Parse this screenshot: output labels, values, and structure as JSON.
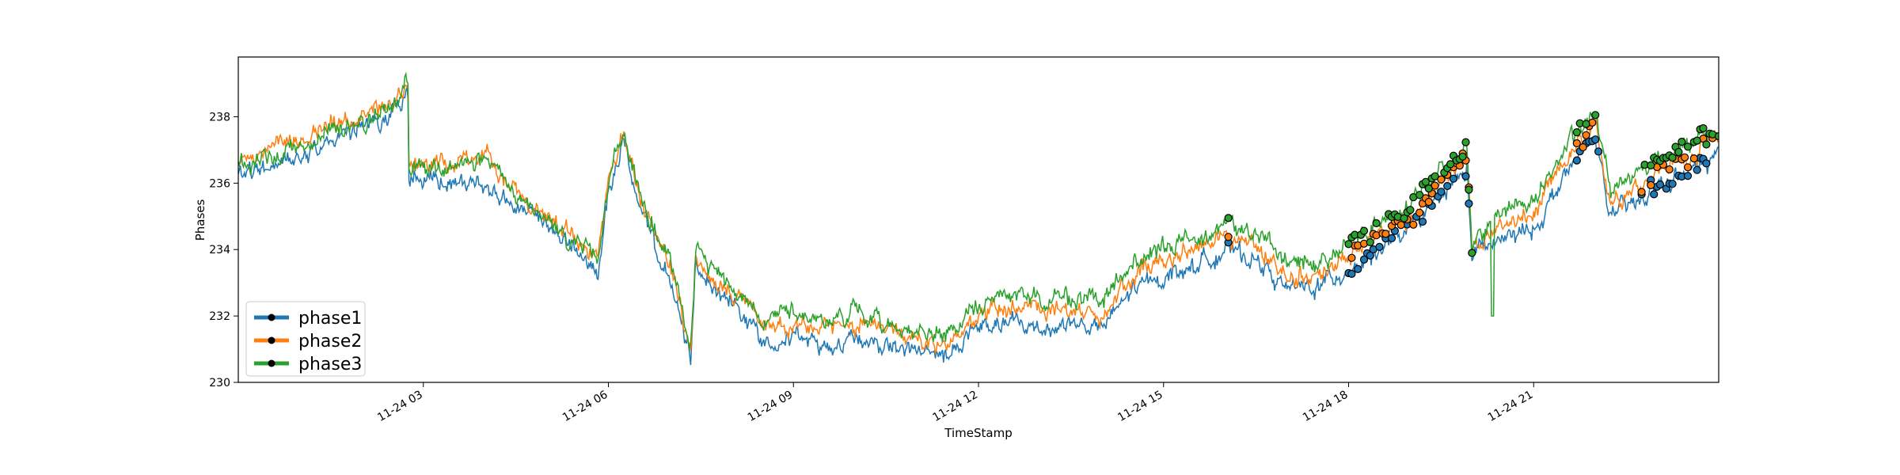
{
  "chart_data": {
    "type": "line",
    "xlabel": "TimeStamp",
    "ylabel": "Phases",
    "x_start": "11-24 00:00",
    "x_end": "11-24 24:00",
    "ylim": [
      230,
      239.8
    ],
    "yticks": [
      230,
      232,
      234,
      236,
      238
    ],
    "ytick_labels": [
      "230",
      "232",
      "234",
      "236",
      "238"
    ],
    "xticks": [
      "11-24 03",
      "11-24 06",
      "11-24 09",
      "11-24 12",
      "11-24 15",
      "11-24 18",
      "11-24 21"
    ],
    "legend_position": "lower-left",
    "grid": false,
    "markers_note": "circle markers (black edge) on anomalous points",
    "series": [
      {
        "name": "phase1",
        "color": "#1f77b4",
        "values": [
          [
            "00:00",
            236.2
          ],
          [
            "00:30",
            236.5
          ],
          [
            "01:00",
            236.9
          ],
          [
            "01:30",
            237.3
          ],
          [
            "02:00",
            237.6
          ],
          [
            "02:30",
            238.2
          ],
          [
            "02:45",
            238.6
          ],
          [
            "02:46",
            236.1
          ],
          [
            "03:30",
            236.0
          ],
          [
            "04:00",
            235.9
          ],
          [
            "04:30",
            235.3
          ],
          [
            "05:00",
            234.6
          ],
          [
            "05:30",
            234.0
          ],
          [
            "05:50",
            233.2
          ],
          [
            "06:00",
            235.8
          ],
          [
            "06:15",
            237.3
          ],
          [
            "06:30",
            235.2
          ],
          [
            "07:00",
            233.0
          ],
          [
            "07:20",
            230.7
          ],
          [
            "07:25",
            233.5
          ],
          [
            "08:00",
            232.4
          ],
          [
            "08:30",
            231.3
          ],
          [
            "09:00",
            231.4
          ],
          [
            "09:30",
            231.0
          ],
          [
            "10:00",
            231.4
          ],
          [
            "10:30",
            231.1
          ],
          [
            "11:00",
            230.9
          ],
          [
            "11:30",
            230.8
          ],
          [
            "12:00",
            231.6
          ],
          [
            "12:30",
            231.8
          ],
          [
            "13:00",
            231.6
          ],
          [
            "13:30",
            231.8
          ],
          [
            "14:00",
            231.6
          ],
          [
            "14:30",
            232.8
          ],
          [
            "15:00",
            233.2
          ],
          [
            "15:30",
            233.5
          ],
          [
            "16:00",
            234.0
          ],
          [
            "16:30",
            233.7
          ],
          [
            "17:00",
            232.8
          ],
          [
            "17:30",
            232.9
          ],
          [
            "18:00",
            233.4
          ],
          [
            "18:30",
            234.0
          ],
          [
            "19:00",
            234.6
          ],
          [
            "19:30",
            235.6
          ],
          [
            "19:55",
            236.4
          ],
          [
            "20:00",
            233.9
          ],
          [
            "20:30",
            234.3
          ],
          [
            "21:00",
            234.6
          ],
          [
            "21:30",
            236.2
          ],
          [
            "22:00",
            237.4
          ],
          [
            "22:15",
            235.0
          ],
          [
            "22:45",
            235.5
          ],
          [
            "23:00",
            235.9
          ],
          [
            "23:30",
            236.3
          ],
          [
            "24:00",
            236.9
          ]
        ]
      },
      {
        "name": "phase2",
        "color": "#ff7f0e",
        "values": [
          [
            "00:00",
            236.7
          ],
          [
            "00:30",
            236.9
          ],
          [
            "01:00",
            237.4
          ],
          [
            "01:30",
            237.8
          ],
          [
            "02:00",
            237.9
          ],
          [
            "02:30",
            238.4
          ],
          [
            "02:45",
            239.0
          ],
          [
            "02:46",
            236.5
          ],
          [
            "03:30",
            236.6
          ],
          [
            "04:00",
            236.9
          ],
          [
            "04:30",
            235.8
          ],
          [
            "05:00",
            235.0
          ],
          [
            "05:30",
            234.4
          ],
          [
            "05:50",
            233.8
          ],
          [
            "06:00",
            236.0
          ],
          [
            "06:15",
            237.5
          ],
          [
            "06:30",
            235.5
          ],
          [
            "07:00",
            233.5
          ],
          [
            "07:20",
            231.0
          ],
          [
            "07:25",
            233.7
          ],
          [
            "08:00",
            232.8
          ],
          [
            "08:30",
            231.7
          ],
          [
            "09:00",
            231.8
          ],
          [
            "09:30",
            231.5
          ],
          [
            "10:00",
            231.8
          ],
          [
            "10:30",
            231.5
          ],
          [
            "11:00",
            231.3
          ],
          [
            "11:30",
            231.2
          ],
          [
            "12:00",
            232.0
          ],
          [
            "12:30",
            232.3
          ],
          [
            "13:00",
            232.1
          ],
          [
            "13:30",
            232.3
          ],
          [
            "14:00",
            232.0
          ],
          [
            "14:30",
            233.2
          ],
          [
            "15:00",
            233.6
          ],
          [
            "15:30",
            234.0
          ],
          [
            "16:00",
            234.4
          ],
          [
            "16:30",
            234.1
          ],
          [
            "17:00",
            233.1
          ],
          [
            "17:30",
            233.2
          ],
          [
            "18:00",
            233.8
          ],
          [
            "18:30",
            234.5
          ],
          [
            "19:00",
            235.0
          ],
          [
            "19:30",
            236.0
          ],
          [
            "19:55",
            236.8
          ],
          [
            "20:00",
            234.0
          ],
          [
            "20:30",
            234.7
          ],
          [
            "21:00",
            235.0
          ],
          [
            "21:30",
            236.6
          ],
          [
            "22:00",
            237.7
          ],
          [
            "22:15",
            235.5
          ],
          [
            "22:45",
            236.0
          ],
          [
            "23:00",
            236.4
          ],
          [
            "23:30",
            236.8
          ],
          [
            "24:00",
            237.3
          ]
        ]
      },
      {
        "name": "phase3",
        "color": "#2ca02c",
        "values": [
          [
            "00:00",
            236.5
          ],
          [
            "00:30",
            236.8
          ],
          [
            "01:00",
            237.2
          ],
          [
            "01:30",
            237.6
          ],
          [
            "02:00",
            237.8
          ],
          [
            "02:30",
            238.3
          ],
          [
            "02:45",
            239.1
          ],
          [
            "02:46",
            236.4
          ],
          [
            "03:30",
            236.5
          ],
          [
            "04:00",
            236.7
          ],
          [
            "04:30",
            235.6
          ],
          [
            "05:00",
            234.8
          ],
          [
            "05:30",
            234.2
          ],
          [
            "05:50",
            233.9
          ],
          [
            "06:00",
            236.0
          ],
          [
            "06:15",
            237.6
          ],
          [
            "06:30",
            235.6
          ],
          [
            "07:00",
            233.6
          ],
          [
            "07:20",
            231.1
          ],
          [
            "07:25",
            233.9
          ],
          [
            "08:00",
            233.0
          ],
          [
            "08:30",
            231.9
          ],
          [
            "09:00",
            232.2
          ],
          [
            "09:30",
            231.8
          ],
          [
            "10:00",
            232.1
          ],
          [
            "10:30",
            231.8
          ],
          [
            "11:00",
            231.5
          ],
          [
            "11:30",
            231.4
          ],
          [
            "12:00",
            232.3
          ],
          [
            "12:30",
            232.7
          ],
          [
            "13:00",
            232.5
          ],
          [
            "13:30",
            232.6
          ],
          [
            "14:00",
            232.4
          ],
          [
            "14:30",
            233.6
          ],
          [
            "15:00",
            234.0
          ],
          [
            "15:30",
            234.4
          ],
          [
            "16:00",
            234.8
          ],
          [
            "16:30",
            234.5
          ],
          [
            "17:00",
            233.6
          ],
          [
            "17:30",
            233.6
          ],
          [
            "18:00",
            234.2
          ],
          [
            "18:30",
            234.9
          ],
          [
            "19:00",
            235.4
          ],
          [
            "19:30",
            236.4
          ],
          [
            "19:55",
            237.1
          ],
          [
            "20:00",
            234.2
          ],
          [
            "20:30",
            235.2
          ],
          [
            "21:00",
            235.5
          ],
          [
            "21:30",
            237.0
          ],
          [
            "22:00",
            238.1
          ],
          [
            "22:15",
            235.9
          ],
          [
            "22:45",
            236.4
          ],
          [
            "23:00",
            236.8
          ],
          [
            "23:30",
            237.1
          ],
          [
            "24:00",
            237.6
          ]
        ]
      }
    ],
    "anomaly_windows": [
      [
        "16:00",
        "16:05"
      ],
      [
        "18:00",
        "20:00"
      ],
      [
        "21:40",
        "22:05"
      ],
      [
        "22:45",
        "24:00"
      ]
    ],
    "dips": [
      [
        "20:20",
        232.0
      ]
    ]
  }
}
